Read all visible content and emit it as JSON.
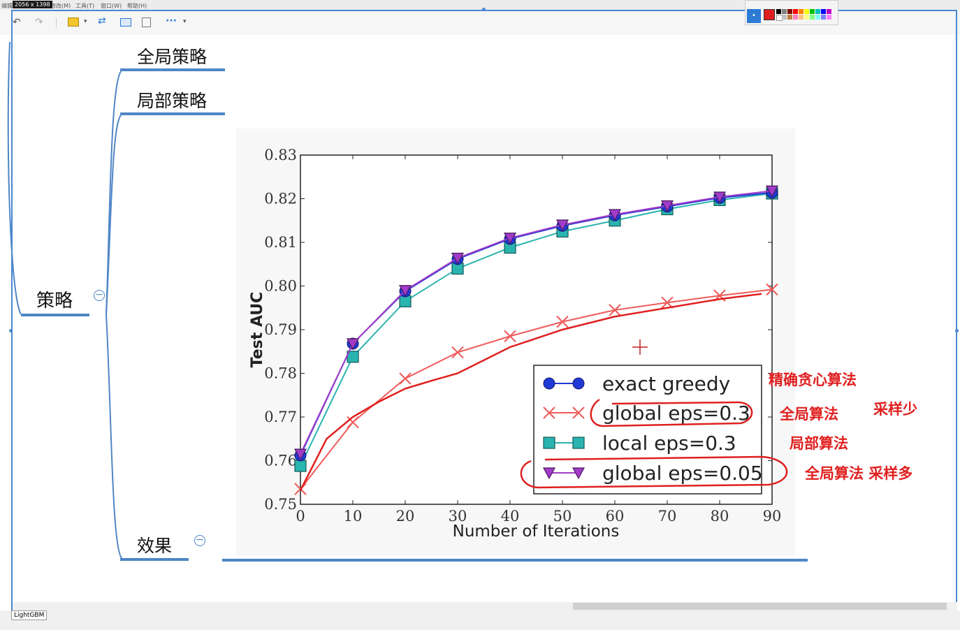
{
  "menu": {
    "items": [
      "编辑(E)",
      "修改(M)",
      "工具(T)",
      "窗口(W)",
      "帮助(H)"
    ]
  },
  "size_badge": "2056 x 1398",
  "toolbar": {
    "icons": [
      "undo-icon",
      "redo-icon",
      "layout-icon",
      "swap-icon",
      "structure-icon",
      "outline-icon",
      "more-icon"
    ],
    "more_label": "···"
  },
  "mindmap": {
    "root": "策略",
    "children": [
      "全局策略",
      "局部策略"
    ],
    "effect": "效果",
    "collapse_symbol": "−"
  },
  "chart_data": {
    "type": "line",
    "xlabel": "Number of Iterations",
    "ylabel": "Test AUC",
    "xlim": [
      0,
      90
    ],
    "ylim": [
      0.75,
      0.83
    ],
    "xticks": [
      0,
      10,
      20,
      30,
      40,
      50,
      60,
      70,
      80,
      90
    ],
    "yticks": [
      "0.75",
      "0.76",
      "0.77",
      "0.78",
      "0.79",
      "0.80",
      "0.81",
      "0.82",
      "0.83"
    ],
    "legend_position": "lower-right",
    "x": [
      0,
      10,
      20,
      30,
      40,
      50,
      60,
      70,
      80,
      90
    ],
    "series": [
      {
        "name": "exact greedy",
        "marker": "circle",
        "color": "#1f3ad6",
        "values": [
          0.7612,
          0.7868,
          0.7988,
          0.8062,
          0.8108,
          0.8138,
          0.8162,
          0.8182,
          0.8202,
          0.8214
        ]
      },
      {
        "name": "global eps=0.3",
        "marker": "x",
        "color": "#ef5b5b",
        "values": [
          0.7535,
          0.7688,
          0.7788,
          0.7848,
          0.7885,
          0.7918,
          0.7945,
          0.7962,
          0.7978,
          0.7992
        ]
      },
      {
        "name": "local eps=0.3",
        "marker": "square",
        "color": "#2ab4b0",
        "values": [
          0.7588,
          0.7838,
          0.7965,
          0.804,
          0.8088,
          0.8125,
          0.815,
          0.8176,
          0.8197,
          0.8212
        ]
      },
      {
        "name": "global eps=0.05",
        "marker": "triangle-down",
        "color": "#a23cc8",
        "values": [
          0.7615,
          0.7868,
          0.799,
          0.8064,
          0.811,
          0.814,
          0.8164,
          0.8184,
          0.8204,
          0.8218
        ]
      }
    ],
    "handdrawn_curve": [
      [
        0,
        0.7532
      ],
      [
        5,
        0.765
      ],
      [
        10,
        0.77
      ],
      [
        15,
        0.7735
      ],
      [
        20,
        0.7765
      ],
      [
        25,
        0.7783
      ],
      [
        30,
        0.78
      ],
      [
        35,
        0.783
      ],
      [
        40,
        0.786
      ],
      [
        50,
        0.79
      ],
      [
        60,
        0.793
      ],
      [
        70,
        0.795
      ],
      [
        80,
        0.797
      ],
      [
        88,
        0.7982
      ]
    ]
  },
  "annotations": {
    "exact_greedy": "精确贪心算法",
    "global_03": "全局算法",
    "global_03_extra": "采样少",
    "local_03": "局部算法",
    "global_005": "全局算法 采样多"
  },
  "bottom": {
    "tab_label": "LightGBM"
  },
  "colors": {
    "accent": "#4a88d0",
    "annotation": "#e02020"
  }
}
